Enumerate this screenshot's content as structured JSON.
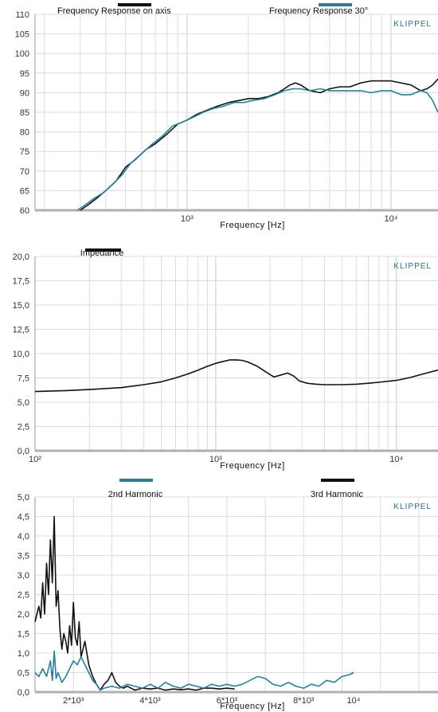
{
  "chart_data": [
    {
      "type": "line",
      "xscale": "log",
      "xlabel": "Frequency  [Hz]",
      "ylabel": "",
      "brand": "KLIPPEL",
      "xlim": [
        180,
        17000
      ],
      "ylim": [
        60,
        110
      ],
      "y_ticks": [
        "60",
        "65",
        "70",
        "75",
        "80",
        "85",
        "90",
        "95",
        "100",
        "105",
        "110"
      ],
      "x_tick_labels": [
        {
          "value": 1000,
          "label": "10³"
        },
        {
          "value": 10000,
          "label": "10⁴"
        }
      ],
      "grid": true,
      "colors": {
        "on_axis": "#111111",
        "off_axis": "#2a7f96"
      },
      "legend": [
        {
          "name": "Frequency Response on axis",
          "color": "#111111"
        },
        {
          "name": "Frequency Response 30°",
          "color": "#2a7f96"
        }
      ],
      "series": [
        {
          "name": "Frequency Response on axis",
          "x": [
            300,
            330,
            360,
            400,
            450,
            500,
            560,
            630,
            700,
            800,
            900,
            1000,
            1120,
            1250,
            1400,
            1600,
            1800,
            2000,
            2250,
            2500,
            2800,
            3000,
            3200,
            3400,
            3600,
            4000,
            4500,
            5000,
            5600,
            6300,
            7100,
            8000,
            9000,
            10000,
            11200,
            12500,
            14000,
            15000,
            16000,
            17000
          ],
          "y": [
            60,
            61.5,
            63,
            65,
            67.5,
            71,
            73,
            75.5,
            77,
            79.5,
            82,
            83,
            84.5,
            85.5,
            86.5,
            87.5,
            88,
            88.5,
            88.5,
            89,
            90,
            91,
            92,
            92.5,
            92,
            90.5,
            90,
            91,
            91.5,
            91.5,
            92.5,
            93,
            93,
            93,
            92.5,
            92,
            90.5,
            91,
            92,
            93.5
          ]
        },
        {
          "name": "Frequency Response 30°",
          "x": [
            290,
            320,
            350,
            390,
            430,
            480,
            530,
            600,
            680,
            760,
            850,
            950,
            1050,
            1200,
            1350,
            1500,
            1700,
            1900,
            2100,
            2400,
            2700,
            3000,
            3300,
            3600,
            4000,
            4500,
            5000,
            5600,
            6300,
            7100,
            8000,
            9000,
            10000,
            11200,
            12500,
            14000,
            15000,
            16000,
            17000
          ],
          "y": [
            60,
            61.5,
            63,
            64.5,
            66.5,
            69,
            72,
            74.5,
            77,
            79,
            81.5,
            82.5,
            83.5,
            85,
            86,
            86.5,
            87.5,
            87.5,
            88,
            88.5,
            89.5,
            90.5,
            91,
            91,
            90.5,
            91,
            90.5,
            90.5,
            90.5,
            90.5,
            90,
            90.5,
            90.5,
            89.5,
            89.5,
            90.5,
            90,
            88,
            85
          ]
        }
      ]
    },
    {
      "type": "line",
      "xscale": "log",
      "xlabel": "Frequency  [Hz]",
      "ylabel": "",
      "brand": "KLIPPEL",
      "xlim": [
        100,
        17000
      ],
      "ylim": [
        0,
        20
      ],
      "y_ticks": [
        "0,0",
        "2,5",
        "5,0",
        "7,5",
        "10,0",
        "12,5",
        "15,0",
        "17,5",
        "20,0"
      ],
      "x_tick_labels": [
        {
          "value": 100,
          "label": "10²"
        },
        {
          "value": 1000,
          "label": "10³"
        },
        {
          "value": 10000,
          "label": "10⁴"
        }
      ],
      "grid": true,
      "colors": {
        "impedance": "#111111"
      },
      "legend": [
        {
          "name": "Impedance",
          "color": "#111111"
        }
      ],
      "series": [
        {
          "name": "Impedance",
          "x": [
            100,
            150,
            200,
            300,
            400,
            500,
            600,
            700,
            800,
            900,
            1000,
            1100,
            1200,
            1300,
            1400,
            1500,
            1700,
            1900,
            2100,
            2300,
            2500,
            2700,
            2900,
            3200,
            3600,
            4000,
            5000,
            6000,
            7000,
            8000,
            10000,
            12000,
            14000,
            17000
          ],
          "y": [
            6.1,
            6.2,
            6.3,
            6.5,
            6.8,
            7.1,
            7.5,
            7.9,
            8.3,
            8.7,
            9.0,
            9.2,
            9.35,
            9.35,
            9.3,
            9.15,
            8.7,
            8.1,
            7.6,
            7.8,
            8.0,
            7.7,
            7.2,
            6.95,
            6.85,
            6.8,
            6.8,
            6.85,
            6.95,
            7.05,
            7.25,
            7.55,
            7.9,
            8.3
          ]
        }
      ]
    },
    {
      "type": "line",
      "xscale": "linear",
      "xlabel": "Frequency  [Hz]",
      "ylabel": "",
      "brand": "KLIPPEL",
      "xlim": [
        1000,
        11500
      ],
      "ylim": [
        0,
        5
      ],
      "y_ticks": [
        "0,0",
        "0,5",
        "1,0",
        "1,5",
        "2,0",
        "2,5",
        "3,0",
        "3,5",
        "4,0",
        "4,5",
        "5,0"
      ],
      "x_tick_labels": [
        {
          "value": 2000,
          "label": "2*10³"
        },
        {
          "value": 4000,
          "label": "4*10³"
        },
        {
          "value": 6000,
          "label": "6*10³"
        },
        {
          "value": 8000,
          "label": "8*10³"
        },
        {
          "value": 9300,
          "label": "10⁴"
        }
      ],
      "grid": true,
      "colors": {
        "second": "#2a7f96",
        "third": "#111111"
      },
      "legend": [
        {
          "name": "2nd Harmonic",
          "color": "#2a7f96"
        },
        {
          "name": "3rd Harmonic",
          "color": "#111111"
        }
      ],
      "series": [
        {
          "name": "3rd Harmonic",
          "x": [
            1000,
            1050,
            1100,
            1150,
            1200,
            1250,
            1300,
            1350,
            1400,
            1450,
            1500,
            1550,
            1600,
            1650,
            1700,
            1750,
            1800,
            1850,
            1900,
            1950,
            2000,
            2050,
            2100,
            2150,
            2200,
            2300,
            2400,
            2500,
            2600,
            2700,
            2800,
            2900,
            3000,
            3100,
            3200,
            3300,
            3400,
            3500,
            3600,
            3800,
            4000,
            4200,
            4400,
            4600,
            4800,
            5000,
            5200,
            5400,
            5600,
            5800,
            6000,
            6200
          ],
          "y": [
            1.8,
            2.0,
            2.2,
            1.9,
            2.8,
            2.0,
            3.3,
            2.5,
            3.9,
            2.8,
            4.5,
            2.2,
            2.6,
            1.6,
            1.1,
            1.5,
            1.3,
            1.0,
            1.7,
            1.2,
            2.3,
            1.4,
            1.2,
            1.8,
            0.9,
            1.3,
            0.7,
            0.4,
            0.2,
            0.05,
            0.2,
            0.3,
            0.5,
            0.25,
            0.15,
            0.1,
            0.15,
            0.1,
            0.05,
            0.1,
            0.08,
            0.1,
            0.05,
            0.08,
            0.06,
            0.08,
            0.05,
            0.1,
            0.1,
            0.08,
            0.1,
            0.08
          ]
        },
        {
          "name": "2nd Harmonic",
          "x": [
            1000,
            1100,
            1200,
            1300,
            1400,
            1450,
            1500,
            1550,
            1600,
            1700,
            1800,
            1900,
            2000,
            2100,
            2200,
            2300,
            2400,
            2500,
            2600,
            2700,
            2800,
            3000,
            3200,
            3400,
            3600,
            3800,
            4000,
            4200,
            4400,
            4600,
            4800,
            5000,
            5200,
            5400,
            5600,
            5800,
            6000,
            6200,
            6400,
            6600,
            6800,
            7000,
            7200,
            7400,
            7600,
            7800,
            8000,
            8200,
            8400,
            8600,
            8800,
            9000,
            9200,
            9300
          ],
          "y": [
            0.5,
            0.4,
            0.6,
            0.4,
            0.8,
            0.3,
            1.05,
            0.35,
            0.5,
            0.25,
            0.4,
            0.6,
            0.8,
            0.7,
            0.9,
            0.7,
            0.5,
            0.3,
            0.2,
            0.05,
            0.1,
            0.15,
            0.1,
            0.2,
            0.15,
            0.1,
            0.2,
            0.1,
            0.25,
            0.15,
            0.1,
            0.2,
            0.15,
            0.1,
            0.2,
            0.15,
            0.2,
            0.15,
            0.2,
            0.3,
            0.4,
            0.35,
            0.2,
            0.15,
            0.25,
            0.15,
            0.1,
            0.2,
            0.15,
            0.3,
            0.25,
            0.4,
            0.45,
            0.5
          ]
        }
      ]
    }
  ]
}
